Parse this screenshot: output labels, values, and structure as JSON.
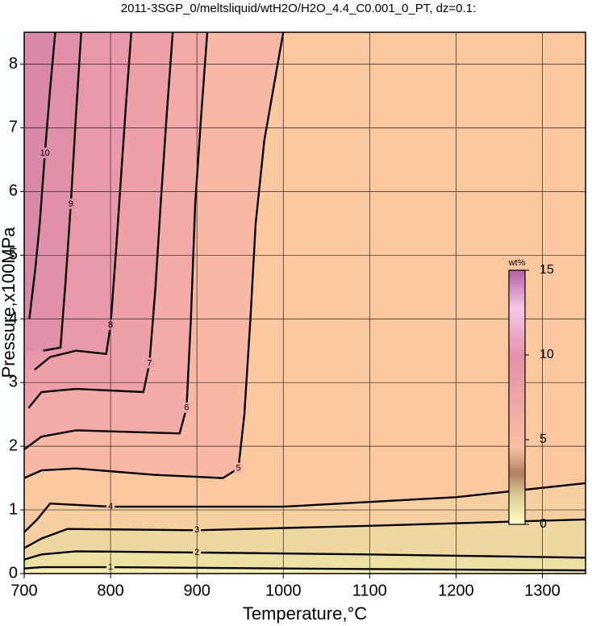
{
  "chart_data": {
    "type": "contour",
    "title": "2011-3SGP_0/meltsliquid/wtH2O/H2O_4.4_C0.001_0_PT, dz=0.1:",
    "x_label": "Temperature,°C",
    "y_label": "Pressure,x100MPa",
    "xlim": [
      700,
      1350
    ],
    "ylim": [
      0,
      8.5
    ],
    "xticks": [
      700,
      800,
      900,
      1000,
      1100,
      1200,
      1300
    ],
    "yticks": [
      0,
      1,
      2,
      3,
      4,
      5,
      6,
      7,
      8
    ],
    "grid": true,
    "contours": [
      {
        "level": 1,
        "x": [
          700,
          720,
          800,
          1000,
          1350
        ],
        "y": [
          0.08,
          0.1,
          0.1,
          0.08,
          0.05
        ]
      },
      {
        "level": 2,
        "x": [
          700,
          720,
          760,
          900,
          1100,
          1350
        ],
        "y": [
          0.22,
          0.3,
          0.35,
          0.33,
          0.3,
          0.25
        ]
      },
      {
        "level": 3,
        "x": [
          700,
          720,
          750,
          900,
          1100,
          1350
        ],
        "y": [
          0.4,
          0.55,
          0.7,
          0.68,
          0.75,
          0.85
        ]
      },
      {
        "level": 4,
        "x": [
          700,
          715,
          730,
          800,
          1000,
          1200,
          1350
        ],
        "y": [
          0.65,
          0.85,
          1.1,
          1.05,
          1.05,
          1.2,
          1.42
        ]
      },
      {
        "level": 5,
        "x": [
          700,
          720,
          760,
          850,
          930,
          948,
          955,
          962,
          968,
          978,
          1000
        ],
        "y": [
          1.5,
          1.62,
          1.65,
          1.55,
          1.5,
          1.65,
          2.5,
          4.0,
          5.5,
          6.8,
          8.5
        ]
      },
      {
        "level": 6,
        "x": [
          700,
          720,
          760,
          880,
          888,
          893,
          898,
          905,
          912
        ],
        "y": [
          1.95,
          2.15,
          2.25,
          2.2,
          2.6,
          4.0,
          5.8,
          7.2,
          8.5
        ]
      },
      {
        "level": 7,
        "x": [
          705,
          720,
          760,
          838,
          845,
          852,
          858,
          865,
          872
        ],
        "y": [
          2.6,
          2.85,
          2.9,
          2.85,
          3.3,
          4.5,
          5.8,
          7.2,
          8.5
        ]
      },
      {
        "level": 8,
        "x": [
          712,
          730,
          760,
          795,
          800,
          806,
          812,
          818,
          824
        ],
        "y": [
          3.2,
          3.4,
          3.5,
          3.45,
          3.9,
          5.0,
          6.2,
          7.4,
          8.5
        ]
      },
      {
        "level": 9,
        "x": [
          722,
          742,
          748,
          754,
          760,
          766
        ],
        "y": [
          3.5,
          3.55,
          4.6,
          5.8,
          7.2,
          8.5
        ]
      },
      {
        "level": 10,
        "x": [
          706,
          713,
          718,
          724,
          730,
          736
        ],
        "y": [
          4.0,
          4.8,
          5.5,
          6.6,
          7.6,
          8.5
        ]
      }
    ],
    "colorbar": {
      "label": "wt%",
      "lim": [
        0,
        15
      ],
      "ticks": [
        0,
        5,
        10,
        15
      ]
    }
  }
}
